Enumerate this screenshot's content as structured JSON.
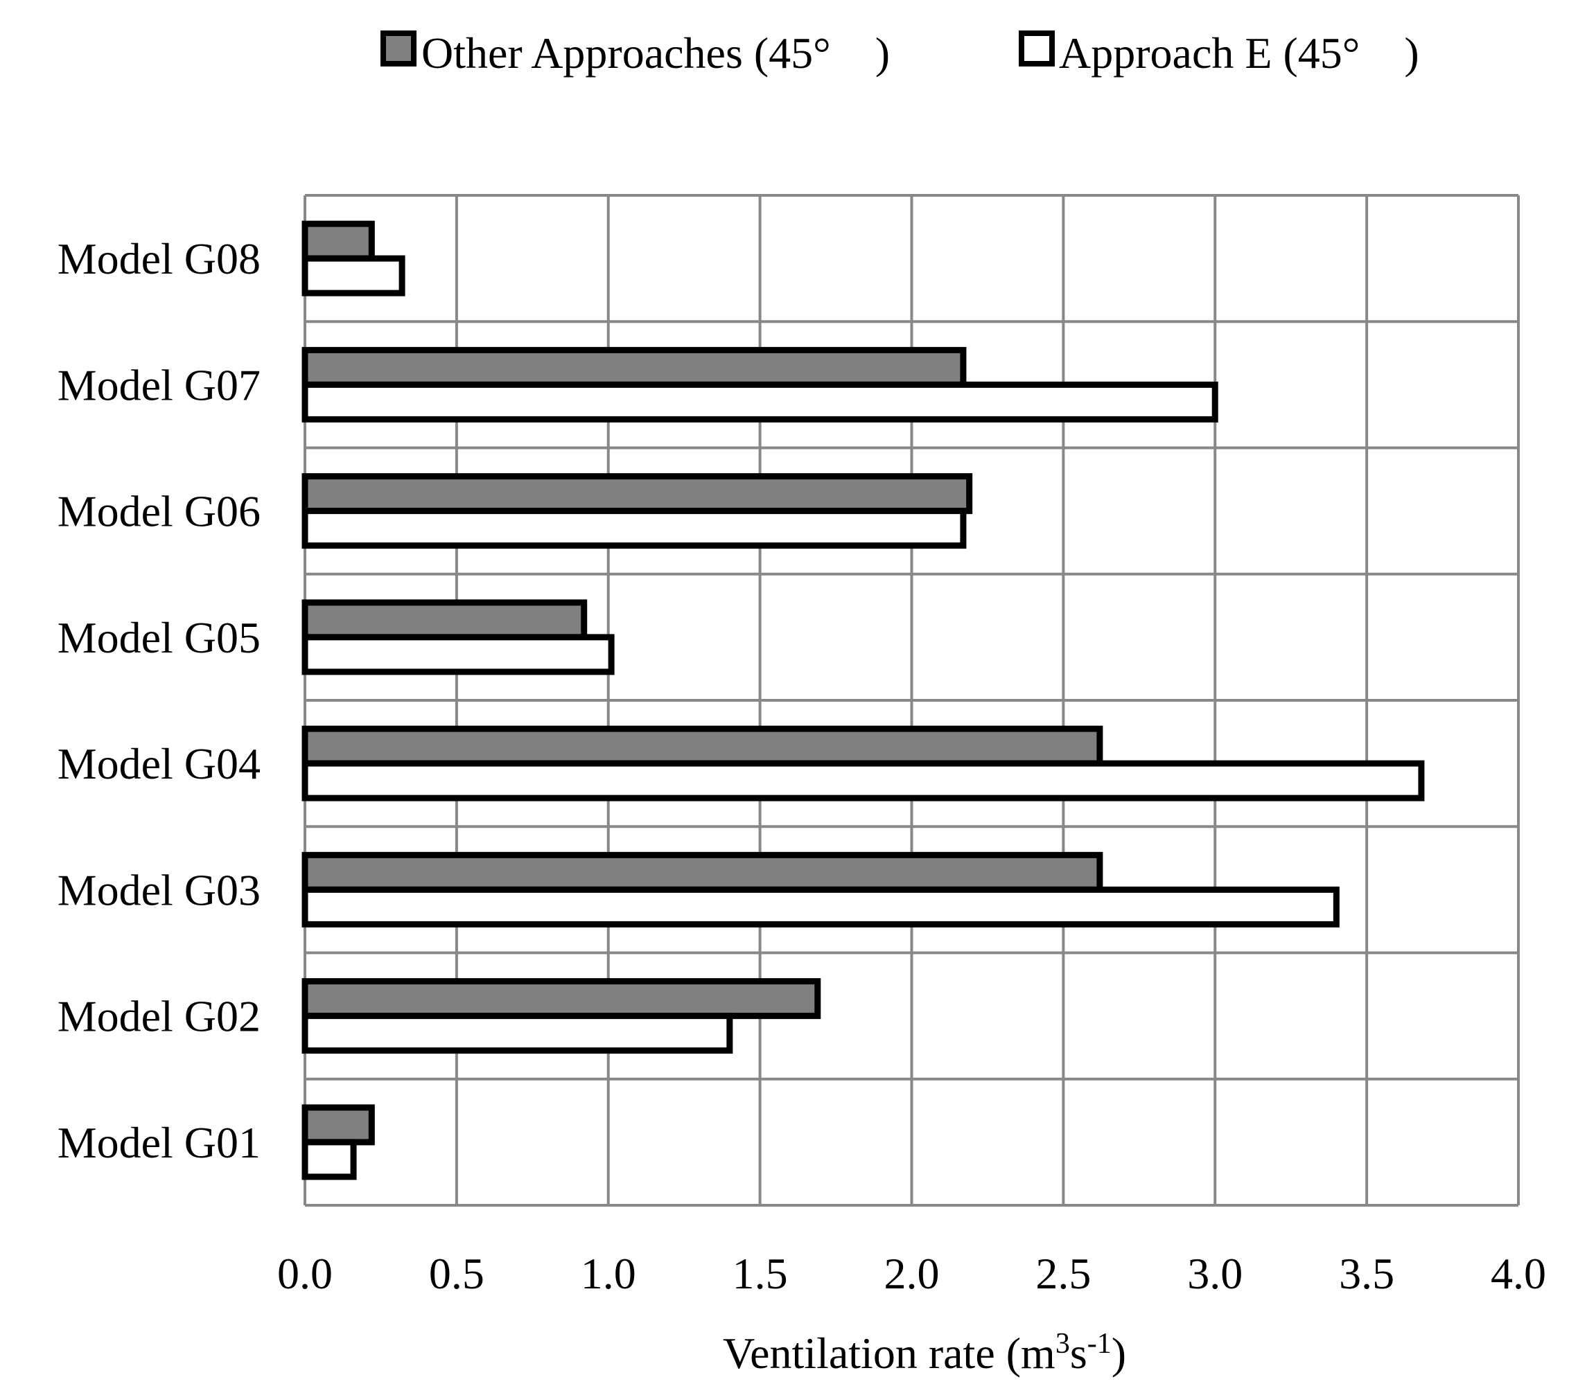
{
  "chart_data": {
    "type": "bar",
    "orientation": "horizontal",
    "categories": [
      "Model G01",
      "Model G02",
      "Model G03",
      "Model G04",
      "Model G05",
      "Model G06",
      "Model G07",
      "Model G08"
    ],
    "series": [
      {
        "name": "Other Approaches (45°　)",
        "color": "#808080",
        "values": [
          0.22,
          1.69,
          2.62,
          2.62,
          0.92,
          2.19,
          2.17,
          0.22
        ]
      },
      {
        "name": "Approach E (45°　)",
        "color": "#ffffff",
        "values": [
          0.16,
          1.4,
          3.4,
          3.68,
          1.01,
          2.17,
          3.0,
          0.32
        ]
      }
    ],
    "xlabel": {
      "prefix": "Ventilation rate (m",
      "sup1": "3",
      "mid": "s",
      "sup2": "-1",
      "suffix": ")"
    },
    "xlim": [
      0,
      4.0
    ],
    "xticks": [
      0,
      0.5,
      1.0,
      1.5,
      2.0,
      2.5,
      3.0,
      3.5,
      4.0
    ],
    "xtick_labels": [
      "0.0",
      "0.5",
      "1.0",
      "1.5",
      "2.0",
      "2.5",
      "3.0",
      "3.5",
      "4.0"
    ],
    "grid": true,
    "legend_position": "top",
    "grid_color": "#888888",
    "bar_edge_color": "#000000"
  }
}
